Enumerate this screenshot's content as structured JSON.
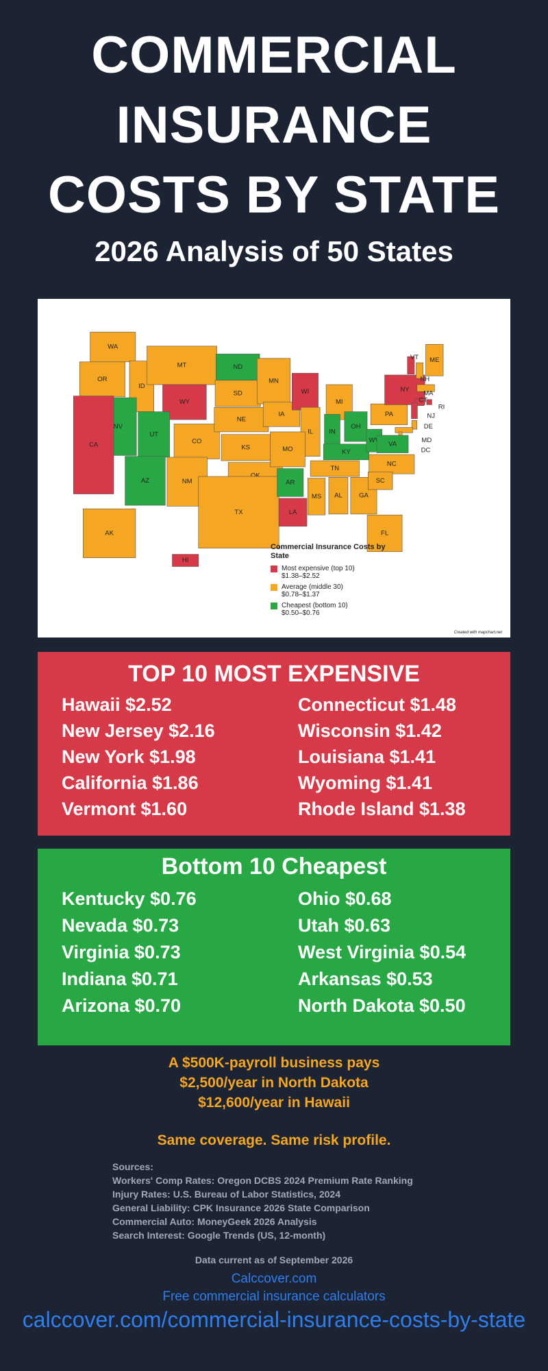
{
  "header": {
    "title": "COMMERCIAL INSURANCE COSTS BY STATE",
    "subtitle": "2026 Analysis of 50 States"
  },
  "map": {
    "states": [
      {
        "abbr": "WA",
        "color": "#f5a623"
      },
      {
        "abbr": "OR",
        "color": "#f5a623"
      },
      {
        "abbr": "ID",
        "color": "#f5a623"
      },
      {
        "abbr": "MT",
        "color": "#f5a623"
      },
      {
        "abbr": "ND",
        "color": "#27a845"
      },
      {
        "abbr": "SD",
        "color": "#f5a623"
      },
      {
        "abbr": "WY",
        "color": "#d63a48"
      },
      {
        "abbr": "NV",
        "color": "#27a845"
      },
      {
        "abbr": "UT",
        "color": "#27a845"
      },
      {
        "abbr": "CO",
        "color": "#f5a623"
      },
      {
        "abbr": "NE",
        "color": "#f5a623"
      },
      {
        "abbr": "KS",
        "color": "#f5a623"
      },
      {
        "abbr": "MN",
        "color": "#f5a623"
      },
      {
        "abbr": "IA",
        "color": "#f5a623"
      },
      {
        "abbr": "WI",
        "color": "#d63a48"
      },
      {
        "abbr": "MI",
        "color": "#f5a623"
      },
      {
        "abbr": "IL",
        "color": "#f5a623"
      },
      {
        "abbr": "IN",
        "color": "#27a845"
      },
      {
        "abbr": "OH",
        "color": "#27a845"
      },
      {
        "abbr": "PA",
        "color": "#f5a623"
      },
      {
        "abbr": "NY",
        "color": "#d63a48"
      },
      {
        "abbr": "VT",
        "color": "#d63a48"
      },
      {
        "abbr": "ME",
        "color": "#f5a623"
      },
      {
        "abbr": "NH",
        "color": "#f5a623"
      },
      {
        "abbr": "MA",
        "color": "#f5a623"
      },
      {
        "abbr": "CT",
        "color": "#d63a48"
      },
      {
        "abbr": "RI",
        "color": "#d63a48"
      },
      {
        "abbr": "NJ",
        "color": "#d63a48"
      },
      {
        "abbr": "DE",
        "color": "#f5a623"
      },
      {
        "abbr": "MD",
        "color": "#f5a623"
      },
      {
        "abbr": "DC",
        "color": "#f5a623"
      },
      {
        "abbr": "CA",
        "color": "#d63a48"
      },
      {
        "abbr": "AZ",
        "color": "#27a845"
      },
      {
        "abbr": "NM",
        "color": "#f5a623"
      },
      {
        "abbr": "OK",
        "color": "#f5a623"
      },
      {
        "abbr": "TX",
        "color": "#f5a623"
      },
      {
        "abbr": "MO",
        "color": "#f5a623"
      },
      {
        "abbr": "AR",
        "color": "#27a845"
      },
      {
        "abbr": "LA",
        "color": "#d63a48"
      },
      {
        "abbr": "MS",
        "color": "#f5a623"
      },
      {
        "abbr": "AL",
        "color": "#f5a623"
      },
      {
        "abbr": "GA",
        "color": "#f5a623"
      },
      {
        "abbr": "FL",
        "color": "#f5a623"
      },
      {
        "abbr": "TN",
        "color": "#f5a623"
      },
      {
        "abbr": "KY",
        "color": "#27a845"
      },
      {
        "abbr": "WV",
        "color": "#27a845"
      },
      {
        "abbr": "VA",
        "color": "#27a845"
      },
      {
        "abbr": "NC",
        "color": "#f5a623"
      },
      {
        "abbr": "SC",
        "color": "#f5a623"
      },
      {
        "abbr": "AK",
        "color": "#f5a623"
      },
      {
        "abbr": "HI",
        "color": "#d63a48"
      }
    ],
    "legend": {
      "title": "Commercial Insurance Costs by State",
      "items": [
        {
          "label": "Most expensive (top 10)",
          "range": "$1.38–$2.52",
          "color": "#d63a48"
        },
        {
          "label": "Average (middle 30)",
          "range": "$0.78–$1.37",
          "color": "#f5a623"
        },
        {
          "label": "Cheapest (bottom 10)",
          "range": "$0.50–$0.76",
          "color": "#27a845"
        }
      ]
    },
    "credit": "Created with mapchart.net"
  },
  "expensive": {
    "heading": "TOP 10 MOST EXPENSIVE",
    "items": [
      "Hawaii $2.52",
      "New Jersey $2.16",
      "New York $1.98",
      "California $1.86",
      "Vermont $1.60",
      "Connecticut $1.48",
      "Wisconsin $1.42",
      "Louisiana $1.41",
      "Wyoming $1.41",
      "Rhode Island $1.38"
    ]
  },
  "cheapest": {
    "heading": "Bottom 10 Cheapest",
    "items": [
      "Kentucky $0.76",
      "Nevada $0.73",
      "Virginia $0.73",
      "Indiana $0.71",
      "Arizona $0.70",
      "Ohio $0.68",
      "Utah $0.63",
      "West Virginia $0.54",
      "Arkansas $0.53",
      "North Dakota $0.50"
    ]
  },
  "callout": {
    "lines": [
      "A $500K-payroll business pays",
      "$2,500/year in North Dakota",
      "$12,600/year in Hawaii"
    ],
    "tagline": "Same coverage. Same risk profile."
  },
  "sources": {
    "heading": "Sources:",
    "items": [
      "Workers' Comp Rates: Oregon DCBS 2024 Premium Rate Ranking",
      "Injury Rates: U.S. Bureau of Labor Statistics, 2024",
      "General Liability: CPK Insurance 2026 State Comparison",
      "Commercial Auto: MoneyGeek 2026 Analysis",
      "Search Interest: Google Trends (US, 12-month)"
    ]
  },
  "footer": {
    "date": "Data current as of September 2026",
    "site": "Calccover.com",
    "tagline": "Free commercial insurance calculators",
    "url": "calccover.com/commercial-insurance-costs-by-state"
  }
}
